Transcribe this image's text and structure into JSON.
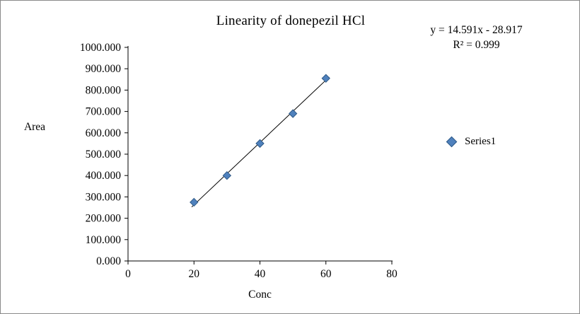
{
  "chart_data": {
    "type": "scatter",
    "title": "Linearity of donepezil HCl",
    "xlabel": "Conc",
    "ylabel": "Area",
    "xlim": [
      0,
      80
    ],
    "ylim": [
      0,
      1000
    ],
    "x_ticks": [
      0,
      20,
      40,
      60,
      80
    ],
    "y_ticks": [
      "0.000",
      "100.000",
      "200.000",
      "300.000",
      "400.000",
      "500.000",
      "600.000",
      "700.000",
      "800.000",
      "900.000",
      "1000.000"
    ],
    "grid": "off",
    "series": [
      {
        "name": "Series1",
        "x": [
          20,
          30,
          40,
          50,
          60
        ],
        "y": [
          275,
          400,
          550,
          690,
          855
        ],
        "marker": "diamond",
        "color": "#4F81BD",
        "edge_color": "#2F5A87"
      }
    ],
    "trendline": {
      "equation": "y = 14.591x - 28.917",
      "r_squared": "R² = 0.999",
      "slope": 14.591,
      "intercept": -28.917,
      "color": "#000000"
    },
    "legend": {
      "position": "right",
      "entries": [
        "Series1"
      ]
    }
  }
}
